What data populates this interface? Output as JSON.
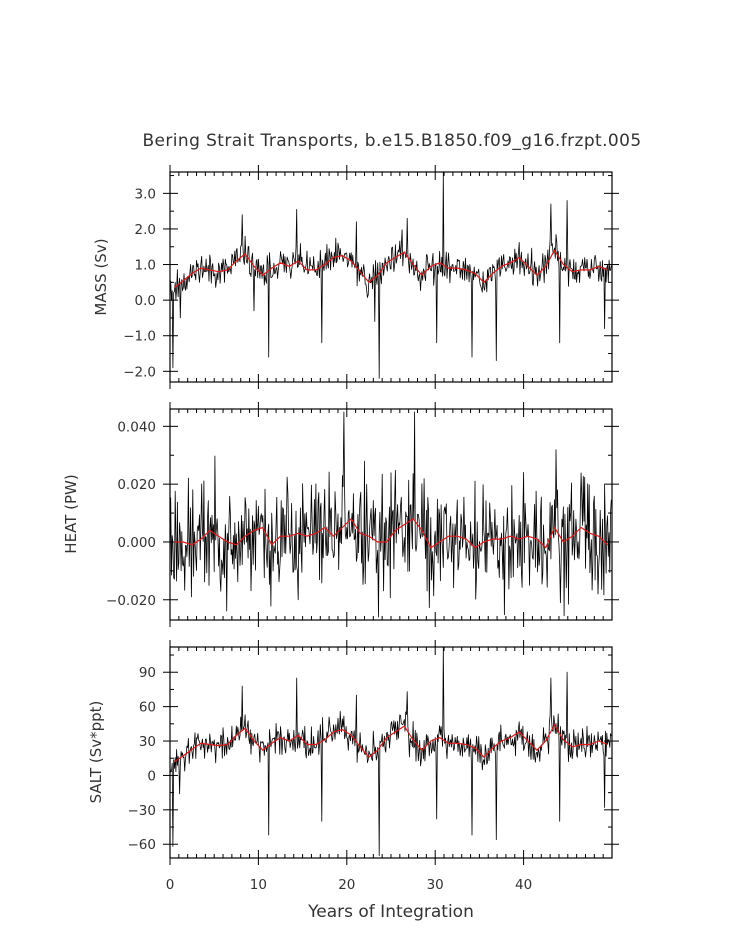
{
  "chart_data": {
    "type": "line",
    "title": "Bering Strait Transports, b.e15.B1850.f09_g16.frzpt.005",
    "xlabel": "Years of Integration",
    "xlim": [
      0,
      50
    ],
    "xticks": [
      0,
      10,
      20,
      30,
      40
    ],
    "xtick_labels": [
      "0",
      "10",
      "20",
      "30",
      "40"
    ],
    "colors": {
      "monthly": "#000000",
      "annual_mean": "#e01818"
    },
    "panels": [
      {
        "id": "mass",
        "ylabel": "MASS (Sv)",
        "ylim": [
          -2.3,
          3.6
        ],
        "yticks": [
          3.0,
          2.0,
          1.0,
          0.0,
          -1.0,
          -2.0
        ],
        "ytick_labels": [
          "3.0",
          "2.0",
          "1.0",
          "0.0",
          "−1.0",
          "−2.0"
        ],
        "annual_mean": [
          0.35,
          0.55,
          0.75,
          0.9,
          0.85,
          0.8,
          0.85,
          1.1,
          1.3,
          0.95,
          0.7,
          0.9,
          1.05,
          0.95,
          1.1,
          0.85,
          0.85,
          1.0,
          1.2,
          1.25,
          1.1,
          0.8,
          0.5,
          0.7,
          1.05,
          1.2,
          1.35,
          1.0,
          0.7,
          0.95,
          1.05,
          0.9,
          0.9,
          0.85,
          0.75,
          0.5,
          0.75,
          0.95,
          1.05,
          1.2,
          0.95,
          0.7,
          0.95,
          1.4,
          1.0,
          0.8,
          0.85,
          0.85,
          0.95,
          0.85
        ],
        "monthly_mean": 0.9,
        "monthly_amp": 0.45,
        "spikes": [
          [
            0.3,
            -1.9
          ],
          [
            1.2,
            -0.5
          ],
          [
            8.2,
            2.4
          ],
          [
            9.5,
            -0.3
          ],
          [
            11.2,
            -1.6
          ],
          [
            14.3,
            2.55
          ],
          [
            17.2,
            -1.2
          ],
          [
            21.1,
            2.2
          ],
          [
            23.2,
            -0.6
          ],
          [
            23.7,
            -2.2
          ],
          [
            26.8,
            2.3
          ],
          [
            30.2,
            -1.2
          ],
          [
            30.9,
            3.6
          ],
          [
            34.2,
            -1.6
          ],
          [
            36.9,
            -1.7
          ],
          [
            43.1,
            2.7
          ],
          [
            44.1,
            -1.2
          ],
          [
            44.9,
            2.8
          ],
          [
            49.2,
            -0.8
          ]
        ],
        "seed": 11
      },
      {
        "id": "heat",
        "ylabel": "HEAT (PW)",
        "ylim": [
          -0.027,
          0.046
        ],
        "yticks": [
          0.04,
          0.02,
          0.0,
          -0.02
        ],
        "ytick_labels": [
          "0.040",
          "0.020",
          "0.000",
          "−0.020"
        ],
        "annual_mean": [
          0.0,
          0.0,
          -0.001,
          0.001,
          0.004,
          0.002,
          0.0,
          -0.001,
          0.002,
          0.004,
          0.005,
          -0.001,
          0.002,
          0.002,
          0.003,
          0.002,
          0.003,
          0.005,
          0.002,
          0.005,
          0.008,
          0.003,
          0.002,
          0.0,
          0.0,
          0.004,
          0.006,
          0.008,
          0.004,
          -0.002,
          0.0,
          0.002,
          0.002,
          0.001,
          -0.002,
          0.0,
          0.001,
          0.001,
          0.002,
          0.001,
          0.002,
          0.001,
          -0.002,
          0.005,
          0.0,
          0.002,
          0.005,
          0.003,
          0.002,
          -0.001
        ],
        "monthly_mean": 0.001,
        "monthly_amp": 0.02,
        "spikes": [
          [
            14.5,
            -0.02
          ],
          [
            19.7,
            0.045
          ],
          [
            23.6,
            -0.026
          ],
          [
            27.7,
            0.045
          ],
          [
            44.2,
            -0.021
          ],
          [
            48.4,
            -0.018
          ]
        ],
        "seed": 23
      },
      {
        "id": "salt",
        "ylabel": "SALT (Sv*ppt)",
        "ylim": [
          -72,
          112
        ],
        "yticks": [
          90,
          60,
          30,
          0,
          -30,
          -60
        ],
        "ytick_labels": [
          "90",
          "60",
          "30",
          "0",
          "−30",
          "−60"
        ],
        "annual_mean": [
          12,
          17,
          23,
          28,
          27,
          26,
          27,
          35,
          41,
          30,
          22,
          28,
          33,
          30,
          35,
          27,
          27,
          31,
          38,
          40,
          35,
          25,
          16,
          22,
          33,
          38,
          43,
          31,
          22,
          30,
          33,
          28,
          28,
          27,
          24,
          16,
          24,
          30,
          33,
          38,
          30,
          22,
          30,
          44,
          31,
          25,
          27,
          27,
          30,
          27
        ],
        "monthly_mean": 29,
        "monthly_amp": 14,
        "spikes": [
          [
            0.3,
            -62
          ],
          [
            1.1,
            -16
          ],
          [
            8.2,
            78
          ],
          [
            11.2,
            -52
          ],
          [
            14.3,
            85
          ],
          [
            17.2,
            -40
          ],
          [
            21.1,
            70
          ],
          [
            23.7,
            -70
          ],
          [
            26.8,
            73
          ],
          [
            30.2,
            -38
          ],
          [
            30.9,
            112
          ],
          [
            34.2,
            -52
          ],
          [
            36.9,
            -56
          ],
          [
            43.1,
            85
          ],
          [
            44.1,
            -40
          ],
          [
            44.9,
            90
          ],
          [
            49.2,
            -28
          ]
        ],
        "seed": 37
      }
    ]
  }
}
